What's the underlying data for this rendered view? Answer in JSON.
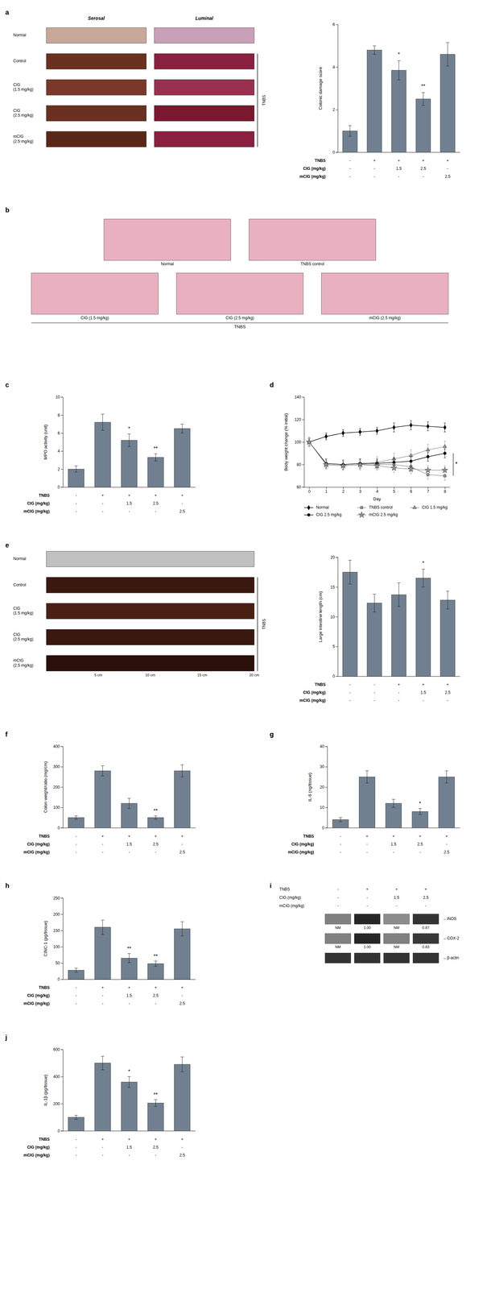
{
  "chart_data": [
    {
      "type": "image_grid",
      "title": "a",
      "columns": [
        "Serosal",
        "Luminal"
      ],
      "rows": [
        {
          "label": "Normal",
          "colors": [
            "#c8a898",
            "#c8a0b8"
          ]
        },
        {
          "label": "Control",
          "colors": [
            "#6a3020",
            "#8a2040"
          ]
        },
        {
          "label": "CIG\n(1.5 mg/kg)",
          "colors": [
            "#7a3828",
            "#9a3050"
          ]
        },
        {
          "label": "CIG\n(2.5 mg/kg)",
          "colors": [
            "#6a3020",
            "#7a1830"
          ]
        },
        {
          "label": "mCIG\n(2.5 mg/kg)",
          "colors": [
            "#5a2818",
            "#8a2040"
          ]
        }
      ],
      "group": {
        "label": "TNBS",
        "rows": [
          1,
          2,
          3,
          4
        ]
      }
    },
    {
      "type": "bar",
      "categories": [
        null,
        null,
        null,
        null,
        null
      ],
      "values": [
        1.0,
        4.8,
        3.85,
        2.5,
        4.6
      ],
      "errors": [
        0.25,
        0.2,
        0.45,
        0.3,
        0.55
      ],
      "ylabel": "Colonic damage score",
      "ylim": [
        0,
        6
      ],
      "yticks": [
        0,
        2,
        4,
        6
      ],
      "color": "#708090",
      "tick_labels": "y",
      "annotations": [
        {
          "index": 2,
          "text": "*"
        },
        {
          "index": 3,
          "text": "**"
        }
      ],
      "table": [
        {
          "label": "TNBS",
          "values": [
            "-",
            "+",
            "+",
            "+",
            "+"
          ]
        },
        {
          "label": "CIG (mg/kg)",
          "values": [
            "-",
            "-",
            "1.5",
            "2.5",
            "-"
          ]
        },
        {
          "label": "mCIG (mg/kg)",
          "values": [
            "-",
            "-",
            "-",
            "-",
            "2.5"
          ]
        }
      ]
    },
    {
      "type": "image_panel",
      "title": "b",
      "rows": [
        {
          "images": [
            {
              "label": "Normal",
              "color": "#e8b0c0"
            },
            {
              "label": "TNBS control",
              "color": "#e8b0c0"
            }
          ]
        },
        {
          "images": [
            {
              "label": "CIG (1.5 mg/kg)",
              "color": "#e8b0c0"
            },
            {
              "label": "CIG (2.5 mg/kg)",
              "color": "#e8b0c0"
            },
            {
              "label": "mCIG (2.5 mg/kg)",
              "color": "#e8b0c0"
            }
          ]
        }
      ],
      "group": {
        "label": "TNBS",
        "rows": [
          1
        ]
      }
    },
    {
      "type": "bar",
      "title": "c",
      "categories": [
        null,
        null,
        null,
        null,
        null
      ],
      "values": [
        2.0,
        7.2,
        5.2,
        3.3,
        6.5
      ],
      "errors": [
        0.35,
        0.9,
        0.7,
        0.4,
        0.5
      ],
      "ylabel": "MPO activity (unit)",
      "ylim": [
        0,
        10
      ],
      "yticks": [
        0,
        2,
        4,
        6,
        8,
        10
      ],
      "color": "#708090",
      "tick_labels": "y",
      "annotations": [
        {
          "index": 2,
          "text": "*"
        },
        {
          "index": 3,
          "text": "**"
        }
      ],
      "table": [
        {
          "label": "TNBS",
          "values": [
            "-",
            "+",
            "+",
            "+",
            "+"
          ]
        },
        {
          "label": "CIG (mg/kg)",
          "values": [
            "-",
            "-",
            "1.5",
            "2.5",
            "-"
          ]
        },
        {
          "label": "mCIG (mg/kg)",
          "values": [
            "-",
            "-",
            "-",
            "-",
            "2.5"
          ]
        }
      ]
    },
    {
      "type": "line",
      "title": "d",
      "x": [
        0,
        1,
        2,
        3,
        4,
        5,
        6,
        7,
        8
      ],
      "xlim": [
        -0.3,
        8.3
      ],
      "xticks": [
        0,
        1,
        2,
        3,
        4,
        5,
        6,
        7,
        8
      ],
      "ylim": [
        60,
        140
      ],
      "yticks": [
        60,
        80,
        100,
        120,
        140
      ],
      "xlabel": "Day",
      "ylabel": "Body weight change (% initial)",
      "legend": "lower left",
      "series": [
        {
          "name": "Normal",
          "color": "#000000",
          "marker": "diamond",
          "line_style": "solid",
          "values": [
            100,
            105,
            108,
            109,
            110,
            113,
            115,
            114,
            113
          ],
          "errors": [
            3,
            3,
            3,
            3,
            3,
            4,
            4,
            4,
            4
          ]
        },
        {
          "name": "TNBS control",
          "color": "#909090",
          "marker": "square",
          "line_style": "solid",
          "values": [
            100,
            80,
            79,
            80,
            80,
            80,
            78,
            71,
            70
          ],
          "errors": [
            4,
            4,
            4,
            4,
            4,
            4,
            4,
            4,
            4
          ]
        },
        {
          "name": "CIG 1.5 mg/kg",
          "color": "#909090",
          "marker": "triangle",
          "line_style": "solid",
          "values": [
            100,
            80,
            79,
            80,
            82,
            85,
            88,
            93,
            96
          ],
          "errors": [
            4,
            4,
            4,
            5,
            5,
            5,
            5,
            5,
            5
          ]
        },
        {
          "name": "CIG 2.5 mg/kg",
          "color": "#000000",
          "marker": "circle",
          "line_style": "solid",
          "values": [
            100,
            81,
            80,
            81,
            81,
            82,
            83,
            87,
            90
          ],
          "errors": [
            4,
            4,
            4,
            4,
            4,
            4,
            4,
            4,
            4
          ]
        },
        {
          "name": "mCIG 2.5 mg/kg",
          "color": "#909090",
          "marker": "star",
          "line_style": "solid",
          "values": [
            100,
            80,
            79,
            80,
            79,
            77,
            76,
            75,
            75
          ],
          "errors": [
            4,
            4,
            4,
            4,
            4,
            4,
            4,
            4,
            4
          ]
        }
      ],
      "annotations": [
        {
          "text": "*",
          "y": [
            70,
            90
          ]
        }
      ]
    },
    {
      "type": "image_grid",
      "title": "e",
      "rows": [
        {
          "label": "Normal",
          "colors": [
            "#c0c0c0"
          ]
        },
        {
          "label": "Control",
          "colors": [
            "#3a1810"
          ]
        },
        {
          "label": "CIG\n(1.5 mg/kg)",
          "colors": [
            "#4a2015"
          ]
        },
        {
          "label": "CIG\n(2.5 mg/kg)",
          "colors": [
            "#3a1810"
          ]
        },
        {
          "label": "mCIG\n(2.5 mg/kg)",
          "colors": [
            "#2a1008"
          ]
        }
      ],
      "xlim": [
        0,
        20
      ],
      "xticks": [
        {
          "value": 5,
          "label": "5 cm"
        },
        {
          "value": 10,
          "label": "10 cm"
        },
        {
          "value": 15,
          "label": "15 cm"
        },
        {
          "value": 20,
          "label": "20 cm"
        }
      ],
      "group": {
        "label": "TNBS",
        "rows": [
          1,
          2,
          3,
          4
        ]
      }
    },
    {
      "type": "bar",
      "categories": [
        null,
        null,
        null,
        null,
        null
      ],
      "values": [
        17.5,
        12.3,
        13.7,
        16.5,
        12.8
      ],
      "errors": [
        2.0,
        1.5,
        2.0,
        1.5,
        1.5
      ],
      "ylabel": "Large intestine length (cm)",
      "ylim": [
        0,
        20
      ],
      "yticks": [
        0,
        5,
        10,
        15,
        20
      ],
      "color": "#708090",
      "tick_labels": "y",
      "annotations": [
        {
          "index": 3,
          "text": "*"
        }
      ],
      "table": [
        {
          "label": "TNBS",
          "values": [
            "-",
            "-",
            "+",
            "+",
            "+"
          ]
        },
        {
          "label": "CIG (mg/kg)",
          "values": [
            "-",
            "-",
            "-",
            "1.5",
            "2.5"
          ]
        },
        {
          "label": "mCIG (mg/kg)",
          "values": [
            "-",
            "-",
            "-",
            "-",
            "-"
          ]
        }
      ]
    },
    {
      "type": "bar",
      "title": "f",
      "categories": [
        null,
        null,
        null,
        null,
        null
      ],
      "values": [
        50,
        280,
        120,
        50,
        280
      ],
      "errors": [
        8,
        25,
        25,
        8,
        30
      ],
      "ylabel": "Colon weight/ratio (mg/cm)",
      "ylim": [
        0,
        400
      ],
      "yticks": [
        0,
        100,
        200,
        300,
        400
      ],
      "color": "#708090",
      "tick_labels": "y",
      "annotations": [
        {
          "index": 3,
          "text": "**"
        }
      ],
      "table": [
        {
          "label": "TNBS",
          "values": [
            "-",
            "+",
            "+",
            "+",
            "+"
          ]
        },
        {
          "label": "CIG (mg/kg)",
          "values": [
            "-",
            "-",
            "1.5",
            "2.5",
            "-"
          ]
        },
        {
          "label": "mCIG (mg/kg)",
          "values": [
            "-",
            "-",
            "-",
            "-",
            "2.5"
          ]
        }
      ]
    },
    {
      "type": "bar",
      "title": "g",
      "categories": [
        null,
        null,
        null,
        null,
        null
      ],
      "values": [
        4,
        25,
        12,
        8,
        25
      ],
      "errors": [
        1,
        3,
        2,
        1.5,
        3
      ],
      "ylabel": "IL-6 (ng/tissue)",
      "ylim": [
        0,
        40
      ],
      "yticks": [
        0,
        10,
        20,
        30,
        40
      ],
      "color": "#708090",
      "tick_labels": "y",
      "annotations": [
        {
          "index": 3,
          "text": "*"
        }
      ],
      "table": [
        {
          "label": "TNBS",
          "values": [
            "-",
            "+",
            "+",
            "+",
            "+"
          ]
        },
        {
          "label": "CIG (mg/kg)",
          "values": [
            "-",
            "-",
            "1.5",
            "2.5",
            "-"
          ]
        },
        {
          "label": "mCIG (mg/kg)",
          "values": [
            "-",
            "-",
            "-",
            "-",
            "2.5"
          ]
        }
      ]
    },
    {
      "type": "bar",
      "title": "h",
      "categories": [
        null,
        null,
        null,
        null,
        null
      ],
      "values": [
        28,
        160,
        65,
        48,
        155
      ],
      "errors": [
        6,
        22,
        14,
        8,
        22
      ],
      "ylabel": "CINC-1 (pg/tissue)",
      "ylim": [
        0,
        250
      ],
      "yticks": [
        0,
        50,
        100,
        150,
        200,
        250
      ],
      "color": "#708090",
      "tick_labels": "y",
      "annotations": [
        {
          "index": 2,
          "text": "**"
        },
        {
          "index": 3,
          "text": "**"
        }
      ],
      "table": [
        {
          "label": "TNBS",
          "values": [
            "-",
            "+",
            "+",
            "+",
            "+"
          ]
        },
        {
          "label": "CIG (mg/kg)",
          "values": [
            "-",
            "-",
            "1.5",
            "2.5",
            "-"
          ]
        },
        {
          "label": "mCIG (mg/kg)",
          "values": [
            "-",
            "-",
            "-",
            "-",
            "2.5"
          ]
        }
      ]
    },
    {
      "type": "western_blot",
      "title": "i",
      "table": [
        {
          "label": "TNBS",
          "values": [
            "-",
            "+",
            "+",
            "+"
          ]
        },
        {
          "label": "CIG (mg/kg)",
          "values": [
            "-",
            "-",
            "1.5",
            "2.5"
          ]
        },
        {
          "label": "mCIG (mg/kg)",
          "values": [
            "-",
            "-",
            "-",
            "-"
          ]
        }
      ],
      "bands": [
        {
          "name": "←iNOS",
          "values": [
            "NM",
            "1.00",
            "NM",
            "0.87"
          ],
          "intensities": [
            0.5,
            0.15,
            0.55,
            0.2
          ]
        },
        {
          "name": "←COX-2",
          "values": [
            "NM",
            "1.00",
            "NM",
            "0.83"
          ],
          "intensities": [
            0.5,
            0.15,
            0.5,
            0.22
          ]
        },
        {
          "name": "←β-actin",
          "intensities": [
            0.2,
            0.2,
            0.2,
            0.2
          ]
        }
      ]
    },
    {
      "type": "bar",
      "title": "j",
      "categories": [
        null,
        null,
        null,
        null,
        null
      ],
      "values": [
        100,
        500,
        360,
        205,
        490
      ],
      "errors": [
        15,
        50,
        40,
        25,
        55
      ],
      "ylabel": "IL-1β (pg/tissue)",
      "ylim": [
        0,
        600
      ],
      "yticks": [
        0,
        200,
        400,
        600
      ],
      "color": "#708090",
      "tick_labels": "y",
      "annotations": [
        {
          "index": 2,
          "text": "*"
        },
        {
          "index": 3,
          "text": "**"
        }
      ],
      "table": [
        {
          "label": "TNBS",
          "values": [
            "-",
            "+",
            "+",
            "+",
            "+"
          ]
        },
        {
          "label": "CIG (mg/kg)",
          "values": [
            "-",
            "-",
            "1.5",
            "2.5",
            "-"
          ]
        },
        {
          "label": "mCIG (mg/kg)",
          "values": [
            "-",
            "-",
            "-",
            "-",
            "2.5"
          ]
        }
      ]
    }
  ]
}
